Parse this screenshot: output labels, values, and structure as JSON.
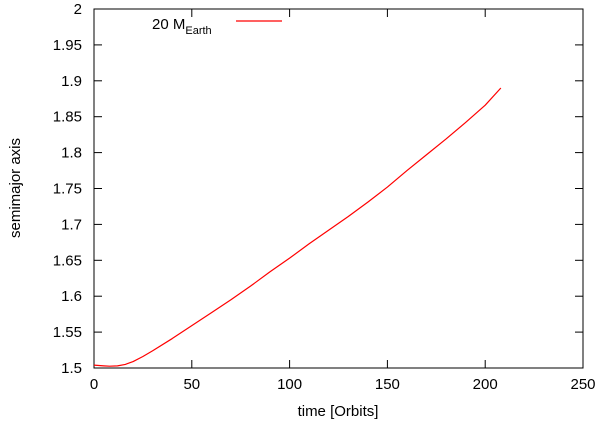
{
  "chart_data": {
    "type": "line",
    "xlabel": "time [Orbits]",
    "ylabel": "semimajor axis",
    "xlim": [
      0,
      250
    ],
    "ylim": [
      1.5,
      2.0
    ],
    "xticks": [
      "0",
      "50",
      "100",
      "150",
      "200",
      "250"
    ],
    "yticks": [
      "1.5",
      "1.55",
      "1.6",
      "1.65",
      "1.7",
      "1.75",
      "1.8",
      "1.85",
      "1.9",
      "1.95",
      "2"
    ],
    "grid": false,
    "legend": {
      "placement": "top-left",
      "label_main": "20 M",
      "label_sub": "Earth"
    },
    "series": [
      {
        "name": "20 M_Earth",
        "color": "#ff0000",
        "x": [
          0,
          5,
          8,
          12,
          16,
          20,
          25,
          30,
          40,
          50,
          60,
          70,
          80,
          90,
          100,
          110,
          120,
          130,
          140,
          150,
          160,
          170,
          180,
          190,
          200,
          208
        ],
        "y": [
          1.504,
          1.503,
          1.5025,
          1.503,
          1.505,
          1.509,
          1.516,
          1.524,
          1.541,
          1.559,
          1.577,
          1.595,
          1.614,
          1.634,
          1.653,
          1.673,
          1.692,
          1.711,
          1.731,
          1.752,
          1.775,
          1.797,
          1.819,
          1.842,
          1.866,
          1.89
        ]
      }
    ]
  }
}
